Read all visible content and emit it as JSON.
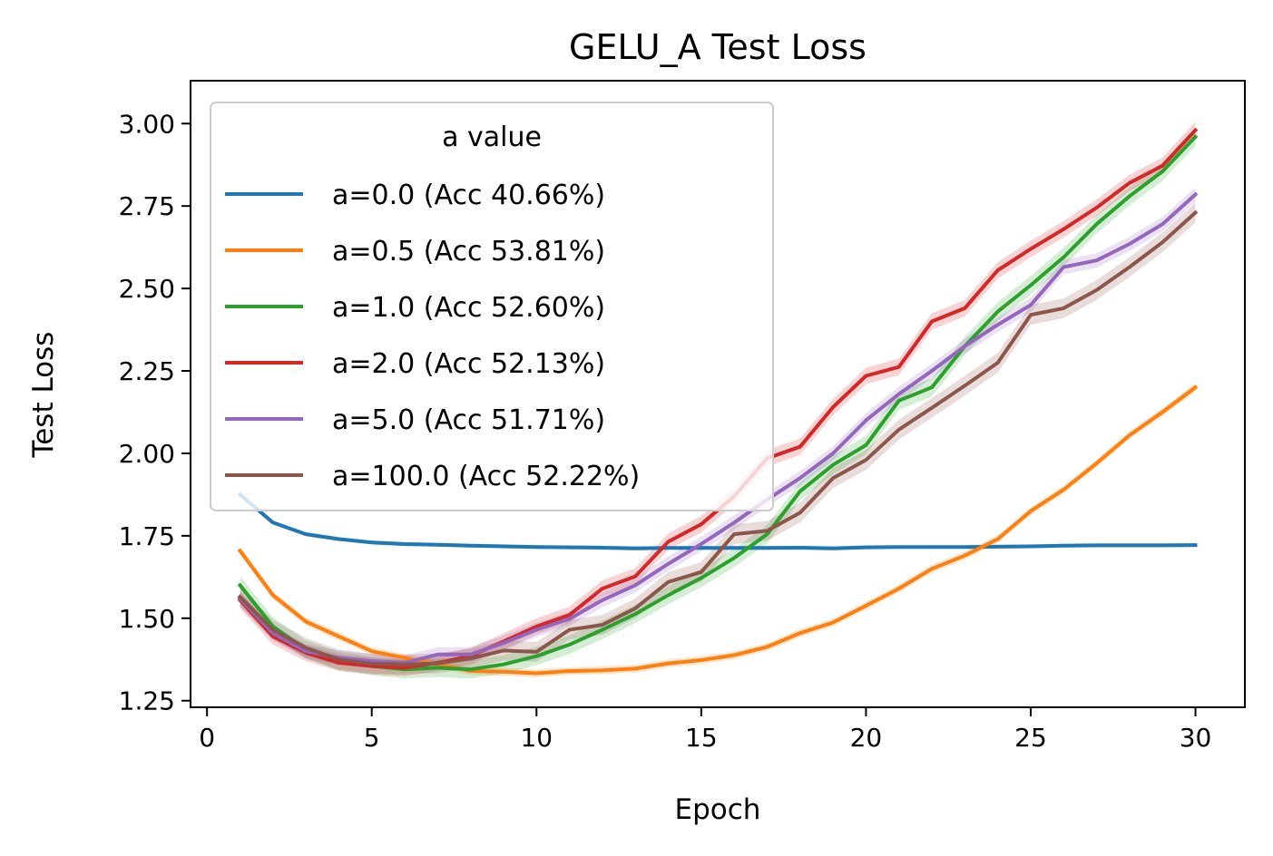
{
  "chart_data": {
    "type": "line",
    "title": "GELU_A Test Loss",
    "xlabel": "Epoch",
    "ylabel": "Test Loss",
    "xlim": [
      -0.5,
      31.5
    ],
    "ylim": [
      1.23,
      3.13
    ],
    "xticks": [
      0,
      5,
      10,
      15,
      20,
      25,
      30
    ],
    "yticks": [
      1.25,
      1.5,
      1.75,
      2.0,
      2.25,
      2.5,
      2.75,
      3.0
    ],
    "xtick_labels": [
      "0",
      "5",
      "10",
      "15",
      "20",
      "25",
      "30"
    ],
    "ytick_labels": [
      "1.25",
      "1.50",
      "1.75",
      "2.00",
      "2.25",
      "2.50",
      "2.75",
      "3.00"
    ],
    "grid": false,
    "legend": {
      "title": "a value",
      "placement": "upper-left"
    },
    "x": [
      1,
      2,
      3,
      4,
      5,
      6,
      7,
      8,
      9,
      10,
      11,
      12,
      13,
      14,
      15,
      16,
      17,
      18,
      19,
      20,
      21,
      22,
      23,
      24,
      25,
      26,
      27,
      28,
      29,
      30
    ],
    "series": [
      {
        "name": "a=0.0 (Acc 40.66%)",
        "color": "#1f77b4",
        "values": [
          1.875,
          1.79,
          1.755,
          1.74,
          1.73,
          1.725,
          1.723,
          1.72,
          1.718,
          1.716,
          1.715,
          1.714,
          1.712,
          1.713,
          1.713,
          1.713,
          1.713,
          1.714,
          1.712,
          1.715,
          1.716,
          1.716,
          1.716,
          1.717,
          1.718,
          1.72,
          1.721,
          1.721,
          1.721,
          1.722
        ],
        "band": 0.006
      },
      {
        "name": "a=0.5 (Acc 53.81%)",
        "color": "#ff7f0e",
        "values": [
          1.705,
          1.57,
          1.49,
          1.445,
          1.4,
          1.38,
          1.36,
          1.34,
          1.338,
          1.333,
          1.34,
          1.342,
          1.347,
          1.363,
          1.373,
          1.388,
          1.413,
          1.455,
          1.487,
          1.538,
          1.59,
          1.65,
          1.69,
          1.74,
          1.825,
          1.89,
          1.97,
          2.055,
          2.125,
          2.2
        ],
        "band": 0.012
      },
      {
        "name": "a=1.0 (Acc 52.60%)",
        "color": "#2ca02c",
        "values": [
          1.6,
          1.475,
          1.405,
          1.37,
          1.355,
          1.345,
          1.35,
          1.345,
          1.36,
          1.385,
          1.42,
          1.465,
          1.513,
          1.57,
          1.622,
          1.683,
          1.755,
          1.885,
          1.965,
          2.025,
          2.16,
          2.2,
          2.325,
          2.43,
          2.51,
          2.595,
          2.695,
          2.78,
          2.855,
          2.96
        ],
        "band": 0.028
      },
      {
        "name": "a=2.0 (Acc 52.13%)",
        "color": "#d62728",
        "values": [
          1.555,
          1.445,
          1.395,
          1.365,
          1.355,
          1.35,
          1.365,
          1.385,
          1.43,
          1.475,
          1.51,
          1.59,
          1.627,
          1.732,
          1.785,
          1.87,
          1.985,
          2.02,
          2.14,
          2.235,
          2.262,
          2.4,
          2.44,
          2.555,
          2.62,
          2.68,
          2.745,
          2.82,
          2.872,
          2.98
        ],
        "band": 0.025
      },
      {
        "name": "a=5.0 (Acc 51.71%)",
        "color": "#9467bd",
        "values": [
          1.56,
          1.455,
          1.4,
          1.38,
          1.37,
          1.365,
          1.39,
          1.39,
          1.425,
          1.465,
          1.498,
          1.555,
          1.6,
          1.665,
          1.725,
          1.79,
          1.86,
          1.925,
          2.0,
          2.1,
          2.18,
          2.25,
          2.325,
          2.39,
          2.45,
          2.565,
          2.585,
          2.635,
          2.695,
          2.785
        ],
        "band": 0.022
      },
      {
        "name": "a=100.0 (Acc 52.22%)",
        "color": "#8c564b",
        "values": [
          1.565,
          1.465,
          1.41,
          1.375,
          1.362,
          1.36,
          1.363,
          1.378,
          1.402,
          1.398,
          1.465,
          1.48,
          1.53,
          1.61,
          1.64,
          1.755,
          1.765,
          1.82,
          1.925,
          1.98,
          2.072,
          2.138,
          2.205,
          2.275,
          2.42,
          2.44,
          2.495,
          2.565,
          2.64,
          2.73
        ],
        "band": 0.03
      }
    ]
  }
}
